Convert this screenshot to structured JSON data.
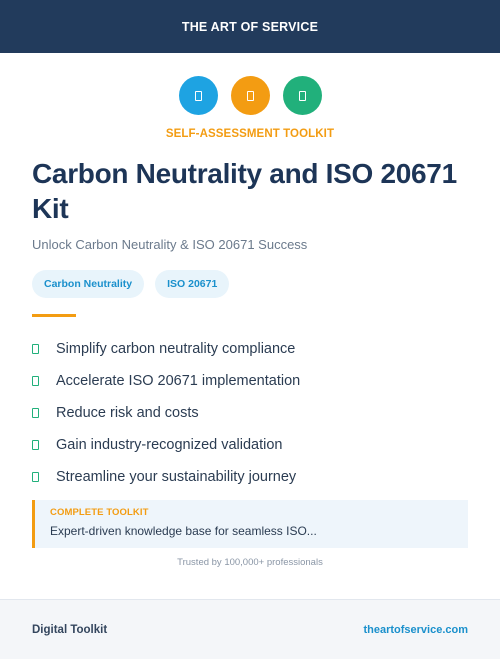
{
  "header": {
    "brand": "THE ART OF SERVICE"
  },
  "icons": [
    "document-icon",
    "document-icon",
    "document-icon"
  ],
  "colors": {
    "blue": "#1ea3e2",
    "orange": "#f39c12",
    "green": "#21b07b",
    "navy": "#223b5c"
  },
  "kicker": "SELF-ASSESSMENT TOOLKIT",
  "title": "Carbon Neutrality and ISO 20671 Kit",
  "subtitle": "Unlock Carbon Neutrality & ISO 20671 Success",
  "tags": [
    "Carbon Neutrality",
    "ISO 20671"
  ],
  "benefits": [
    "Simplify carbon neutrality compliance",
    "Accelerate ISO 20671 implementation",
    "Reduce risk and costs",
    "Gain industry-recognized validation",
    "Streamline your sustainability journey"
  ],
  "callout": {
    "label": "COMPLETE TOOLKIT",
    "text": "Expert-driven knowledge base for seamless ISO..."
  },
  "trusted": "Trusted by 100,000+ professionals",
  "footer": {
    "left": "Digital Toolkit",
    "right": "theartofservice.com"
  }
}
